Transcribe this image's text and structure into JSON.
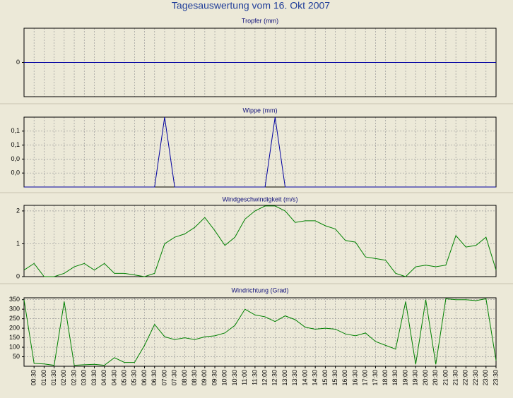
{
  "title": "Tagesauswertung vom 16. Okt 2007",
  "chart_data": [
    {
      "type": "line",
      "title": "Tropfer (mm)",
      "color": "#0000a0",
      "grid": true,
      "values": [
        0,
        0,
        0,
        0,
        0,
        0,
        0,
        0,
        0,
        0,
        0,
        0,
        0,
        0,
        0,
        0,
        0,
        0,
        0,
        0,
        0,
        0,
        0,
        0,
        0,
        0,
        0,
        0,
        0,
        0,
        0,
        0,
        0,
        0,
        0,
        0,
        0,
        0,
        0,
        0,
        0,
        0,
        0,
        0,
        0,
        0,
        0,
        0
      ],
      "ylim": [
        -1,
        1
      ],
      "yticks": [
        0
      ]
    },
    {
      "type": "line",
      "title": "Wippe (mm)",
      "color": "#0000a0",
      "grid": true,
      "values": [
        0,
        0,
        0,
        0,
        0,
        0,
        0,
        0,
        0,
        0,
        0,
        0,
        0,
        0,
        0.2,
        0,
        0,
        0,
        0,
        0,
        0,
        0,
        0,
        0,
        0,
        0.2,
        0,
        0,
        0,
        0,
        0,
        0,
        0,
        0,
        0,
        0,
        0,
        0,
        0,
        0,
        0,
        0,
        0,
        0,
        0,
        0,
        0,
        0
      ],
      "ylim": [
        0,
        0.2
      ],
      "yticks": [
        {
          "value": 0.04,
          "label": "0,0"
        },
        {
          "value": 0.08,
          "label": "0,0"
        },
        {
          "value": 0.12,
          "label": "0,1"
        },
        {
          "value": 0.16,
          "label": "0,1"
        }
      ]
    },
    {
      "type": "line",
      "title": "Windgeschwindigkeit (m/s)",
      "color": "#008000",
      "grid": true,
      "values": [
        0.2,
        0.4,
        0,
        0,
        0.1,
        0.3,
        0.4,
        0.2,
        0.4,
        0.1,
        0.1,
        0.05,
        0,
        0.1,
        1,
        1.2,
        1.3,
        1.5,
        1.8,
        1.4,
        0.95,
        1.2,
        1.75,
        2,
        2.15,
        2.15,
        2,
        1.65,
        1.7,
        1.7,
        1.55,
        1.45,
        1.1,
        1.05,
        0.6,
        0.55,
        0.5,
        0.1,
        0,
        0.3,
        0.35,
        0.3,
        0.35,
        1.25,
        0.9,
        0.95,
        1.2,
        0.2
      ],
      "ylim": [
        0,
        2.17
      ],
      "yticks": [
        0,
        1,
        2
      ]
    },
    {
      "type": "line",
      "title": "Windrichtung (Grad)",
      "color": "#008000",
      "grid": true,
      "categories": [
        null,
        "00:30",
        "01:00",
        "01:30",
        "02:00",
        "02:30",
        "03:00",
        "03:30",
        "04:00",
        "04:30",
        "05:00",
        "05:30",
        "06:00",
        "06:30",
        "07:00",
        "07:30",
        "08:00",
        "08:30",
        "09:00",
        "09:30",
        "10:00",
        "10:30",
        "11:00",
        "11:30",
        "12:00",
        "12:30",
        "13:00",
        "13:30",
        "14:00",
        "14:30",
        "15:00",
        "15:30",
        "16:00",
        "16:30",
        "17:00",
        "17:30",
        "18:00",
        "18:30",
        "19:00",
        "19:30",
        "20:00",
        "20:30",
        "21:00",
        "21:30",
        "22:00",
        "22:30",
        "23:00",
        "23:30"
      ],
      "values": [
        350,
        15,
        12,
        5,
        340,
        5,
        8,
        10,
        5,
        45,
        20,
        20,
        110,
        220,
        155,
        140,
        150,
        140,
        155,
        160,
        175,
        215,
        300,
        270,
        260,
        235,
        265,
        245,
        205,
        195,
        200,
        195,
        170,
        160,
        175,
        130,
        110,
        90,
        340,
        10,
        350,
        10,
        355,
        350,
        350,
        345,
        355,
        30
      ],
      "ylim": [
        0,
        360
      ],
      "yticks": [
        50,
        100,
        150,
        200,
        250,
        300,
        350
      ]
    }
  ]
}
